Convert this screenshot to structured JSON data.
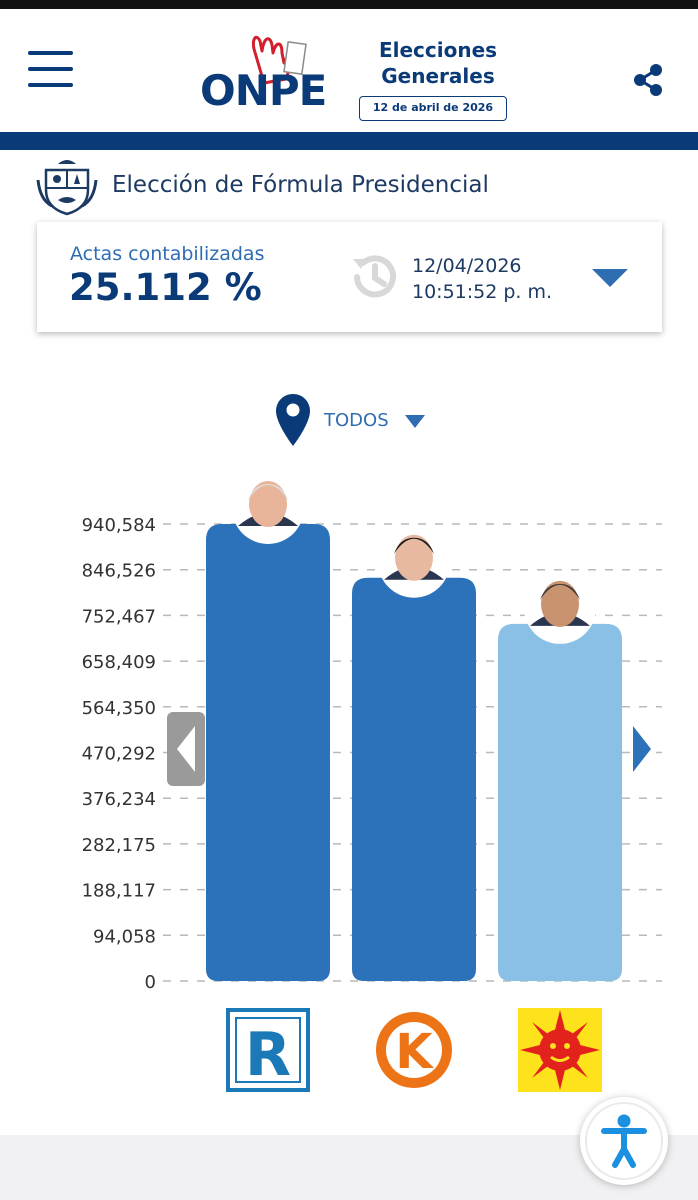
{
  "header": {
    "logo_text": "ONPE",
    "event_title": "Elecciones Generales",
    "event_date": "12 de abril de 2026"
  },
  "page": {
    "title": "Elección de Fórmula Presidencial"
  },
  "summary": {
    "label": "Actas contabilizadas",
    "percent": "25.112 %",
    "date": "12/04/2026",
    "time": "10:51:52 p. m."
  },
  "location_filter": {
    "value": "TODOS"
  },
  "colors": {
    "primary": "#0a3a78",
    "bar_dark": "#2b72bb",
    "bar_light": "#8ac0e6",
    "grid": "#b9b9b9"
  },
  "chart_data": {
    "type": "bar",
    "y_ticks": [
      "0",
      "94,058",
      "188,117",
      "282,175",
      "376,234",
      "470,292",
      "564,350",
      "658,409",
      "752,467",
      "846,526",
      "940,584"
    ],
    "ylim": [
      0,
      940584
    ],
    "values": [
      940584,
      830000,
      735000
    ]
  },
  "candidates": [
    {
      "party_logo": "R"
    },
    {
      "party_logo": "K"
    },
    {
      "party_logo": "sun"
    }
  ]
}
